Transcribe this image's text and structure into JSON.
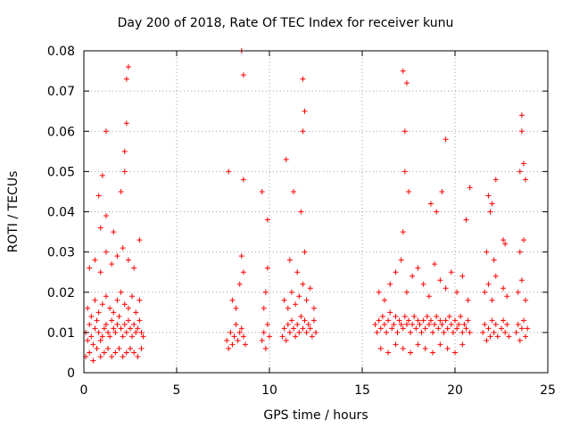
{
  "chart_data": {
    "type": "scatter",
    "title": "Day 200 of 2018, Rate Of TEC Index for receiver kunu",
    "xlabel": "GPS time / hours",
    "ylabel": "ROTI / TECUs",
    "xlim": [
      0,
      25
    ],
    "ylim": [
      0,
      0.08
    ],
    "xticks": [
      "0",
      "5",
      "10",
      "15",
      "20",
      "25"
    ],
    "yticks": [
      "0",
      "0.01",
      "0.02",
      "0.03",
      "0.04",
      "0.05",
      "0.06",
      "0.07",
      "0.08"
    ],
    "grid": true,
    "marker": "+",
    "color": "#ff0000",
    "series": [
      {
        "x": [
          0.1,
          0.2,
          0.3,
          0.4,
          0.5,
          0.6,
          0.7,
          0.8,
          0.9,
          1.0,
          1.1,
          1.2,
          1.3,
          1.4,
          1.5,
          1.6,
          1.7,
          1.8,
          1.9,
          2.0,
          2.1,
          2.2,
          2.3,
          2.4,
          2.5,
          2.6,
          2.7,
          2.8,
          2.9,
          3.0,
          3.1,
          3.2,
          0.2,
          0.4,
          0.6,
          0.8,
          1.0,
          1.2,
          1.4,
          1.6,
          1.8,
          2.0,
          2.2,
          2.4,
          2.6,
          2.8,
          3.0,
          0.1,
          0.3,
          0.5,
          0.7,
          0.9,
          1.1,
          1.3,
          1.5,
          1.7,
          1.9,
          2.1,
          2.3,
          2.5,
          2.7,
          2.9,
          3.1,
          0.3,
          0.6,
          0.9,
          1.2,
          1.5,
          1.8,
          2.1,
          2.4,
          2.7,
          3.0,
          0.8,
          1.0,
          1.2,
          2.0,
          2.2,
          2.3,
          2.3,
          2.4,
          2.2,
          1.2,
          0.9,
          1.6,
          7.7,
          7.8,
          7.9,
          8.0,
          8.1,
          8.2,
          8.3,
          8.4,
          8.5,
          8.6,
          8.7,
          7.8,
          8.0,
          8.2,
          8.4,
          8.6,
          8.5,
          8.6,
          8.6,
          8.5,
          9.6,
          9.7,
          9.8,
          9.9,
          10.0,
          9.7,
          9.8,
          9.9,
          9.6,
          9.9,
          10.7,
          10.8,
          10.9,
          11.0,
          11.1,
          11.2,
          11.3,
          11.4,
          11.5,
          11.6,
          11.7,
          11.8,
          11.9,
          12.0,
          12.1,
          12.2,
          12.3,
          12.4,
          12.5,
          10.8,
          11.0,
          11.2,
          11.4,
          11.6,
          11.8,
          12.0,
          12.2,
          12.4,
          11.1,
          11.5,
          11.9,
          10.9,
          11.3,
          11.7,
          11.8,
          11.9,
          11.8,
          15.7,
          15.8,
          15.9,
          16.0,
          16.1,
          16.2,
          16.3,
          16.4,
          16.5,
          16.6,
          16.7,
          16.8,
          16.9,
          17.0,
          17.1,
          17.2,
          17.3,
          17.4,
          17.5,
          17.6,
          17.7,
          17.8,
          17.9,
          18.0,
          18.1,
          18.2,
          18.3,
          18.4,
          18.5,
          18.6,
          18.7,
          18.8,
          18.9,
          19.0,
          19.1,
          19.2,
          19.3,
          19.4,
          19.5,
          19.6,
          19.7,
          19.8,
          19.9,
          20.0,
          20.1,
          20.2,
          20.3,
          20.4,
          20.5,
          20.6,
          20.7,
          20.8,
          15.9,
          16.2,
          16.5,
          16.8,
          17.1,
          17.4,
          17.7,
          18.0,
          18.3,
          18.6,
          18.9,
          19.2,
          19.5,
          19.8,
          20.1,
          20.4,
          20.7,
          16.0,
          16.4,
          16.8,
          17.2,
          17.6,
          18.0,
          18.4,
          18.8,
          19.2,
          19.6,
          20.0,
          20.4,
          17.2,
          17.3,
          17.3,
          17.4,
          17.2,
          17.5,
          19.3,
          19.5,
          19.0,
          18.7,
          20.6,
          20.8,
          21.5,
          21.6,
          21.7,
          21.8,
          21.9,
          22.0,
          22.1,
          22.2,
          22.3,
          22.5,
          22.6,
          22.7,
          22.8,
          22.9,
          23.3,
          23.4,
          23.5,
          23.6,
          23.7,
          23.8,
          23.9,
          21.6,
          21.8,
          22.0,
          22.2,
          22.6,
          22.8,
          23.4,
          23.6,
          23.8,
          21.7,
          22.1,
          22.7,
          23.5,
          23.7,
          22.0,
          22.2,
          21.9,
          22.6,
          23.5,
          23.6,
          23.7,
          23.8,
          21.8,
          23.6
        ],
        "y": [
          0.01,
          0.008,
          0.012,
          0.009,
          0.007,
          0.011,
          0.013,
          0.01,
          0.008,
          0.009,
          0.011,
          0.012,
          0.01,
          0.009,
          0.013,
          0.011,
          0.01,
          0.012,
          0.014,
          0.011,
          0.009,
          0.012,
          0.01,
          0.013,
          0.011,
          0.009,
          0.012,
          0.01,
          0.011,
          0.013,
          0.01,
          0.009,
          0.016,
          0.014,
          0.018,
          0.015,
          0.017,
          0.019,
          0.016,
          0.015,
          0.018,
          0.02,
          0.017,
          0.016,
          0.019,
          0.015,
          0.018,
          0.004,
          0.005,
          0.003,
          0.006,
          0.004,
          0.005,
          0.006,
          0.004,
          0.005,
          0.006,
          0.004,
          0.005,
          0.006,
          0.005,
          0.004,
          0.006,
          0.026,
          0.028,
          0.025,
          0.03,
          0.027,
          0.029,
          0.031,
          0.028,
          0.026,
          0.033,
          0.044,
          0.049,
          0.06,
          0.045,
          0.055,
          0.062,
          0.073,
          0.076,
          0.05,
          0.039,
          0.036,
          0.035,
          0.008,
          0.006,
          0.01,
          0.007,
          0.009,
          0.012,
          0.008,
          0.01,
          0.011,
          0.009,
          0.007,
          0.05,
          0.018,
          0.016,
          0.022,
          0.025,
          0.029,
          0.048,
          0.074,
          0.08,
          0.008,
          0.01,
          0.006,
          0.012,
          0.009,
          0.016,
          0.02,
          0.026,
          0.045,
          0.038,
          0.009,
          0.011,
          0.008,
          0.012,
          0.01,
          0.013,
          0.011,
          0.009,
          0.012,
          0.01,
          0.014,
          0.011,
          0.013,
          0.01,
          0.012,
          0.011,
          0.009,
          0.013,
          0.01,
          0.018,
          0.016,
          0.02,
          0.017,
          0.019,
          0.022,
          0.018,
          0.021,
          0.016,
          0.028,
          0.025,
          0.03,
          0.053,
          0.045,
          0.04,
          0.06,
          0.065,
          0.073,
          0.012,
          0.01,
          0.013,
          0.011,
          0.014,
          0.012,
          0.01,
          0.013,
          0.015,
          0.011,
          0.012,
          0.014,
          0.01,
          0.013,
          0.012,
          0.011,
          0.014,
          0.012,
          0.013,
          0.01,
          0.012,
          0.014,
          0.011,
          0.013,
          0.012,
          0.01,
          0.013,
          0.011,
          0.014,
          0.012,
          0.013,
          0.01,
          0.012,
          0.014,
          0.011,
          0.013,
          0.012,
          0.01,
          0.013,
          0.011,
          0.014,
          0.012,
          0.01,
          0.013,
          0.011,
          0.012,
          0.014,
          0.01,
          0.012,
          0.011,
          0.013,
          0.01,
          0.02,
          0.018,
          0.022,
          0.025,
          0.028,
          0.02,
          0.024,
          0.026,
          0.022,
          0.019,
          0.027,
          0.023,
          0.021,
          0.025,
          0.02,
          0.024,
          0.018,
          0.006,
          0.005,
          0.007,
          0.006,
          0.005,
          0.007,
          0.006,
          0.005,
          0.007,
          0.006,
          0.005,
          0.007,
          0.035,
          0.05,
          0.06,
          0.072,
          0.075,
          0.045,
          0.045,
          0.058,
          0.04,
          0.042,
          0.038,
          0.046,
          0.01,
          0.012,
          0.008,
          0.011,
          0.009,
          0.013,
          0.01,
          0.012,
          0.009,
          0.011,
          0.013,
          0.01,
          0.012,
          0.009,
          0.01,
          0.012,
          0.008,
          0.011,
          0.013,
          0.009,
          0.011,
          0.02,
          0.022,
          0.018,
          0.024,
          0.021,
          0.019,
          0.02,
          0.023,
          0.018,
          0.03,
          0.028,
          0.032,
          0.03,
          0.033,
          0.042,
          0.048,
          0.04,
          0.033,
          0.05,
          0.064,
          0.052,
          0.048,
          0.044,
          0.06
        ]
      }
    ]
  }
}
